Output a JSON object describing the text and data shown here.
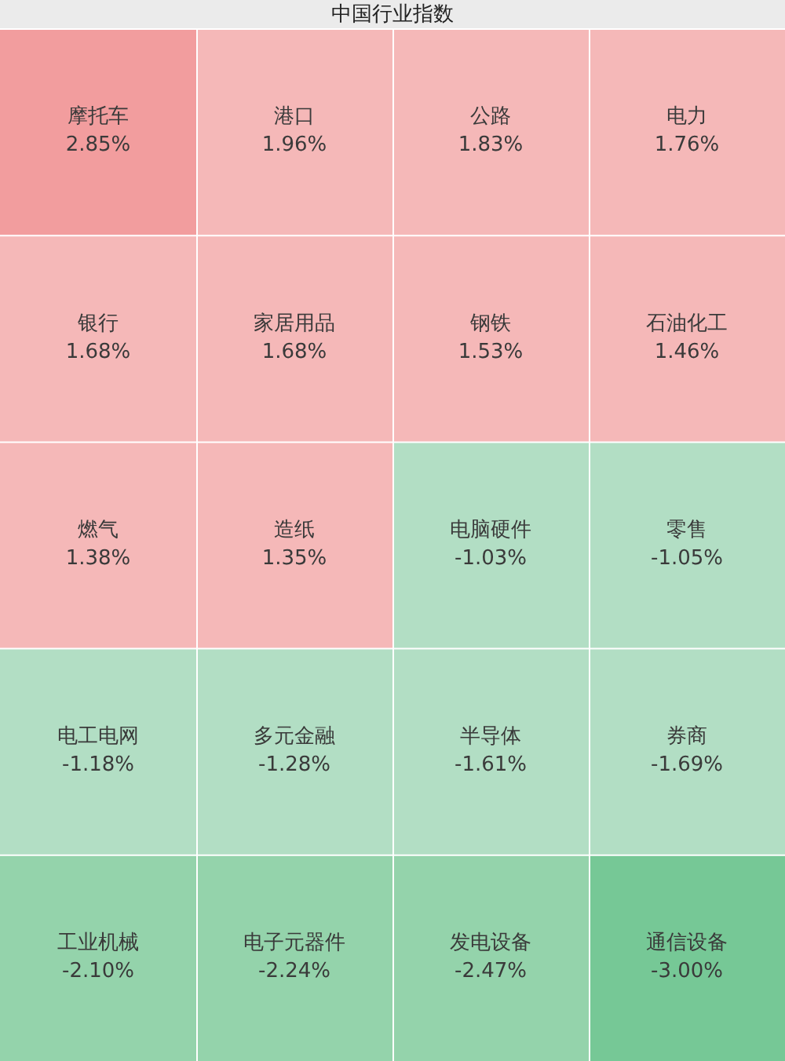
{
  "chart_data": {
    "type": "other",
    "title": "中国行业指数",
    "categories": [
      "摩托车",
      "港口",
      "公路",
      "电力",
      "银行",
      "家居用品",
      "钢铁",
      "石油化工",
      "燃气",
      "造纸",
      "电脑硬件",
      "零售",
      "电工电网",
      "多元金融",
      "半导体",
      "券商",
      "工业机械",
      "电子元器件",
      "发电设备",
      "通信设备"
    ],
    "values": [
      2.85,
      1.96,
      1.83,
      1.76,
      1.68,
      1.68,
      1.53,
      1.46,
      1.38,
      1.35,
      -1.03,
      -1.05,
      -1.18,
      -1.28,
      -1.61,
      -1.69,
      -2.1,
      -2.24,
      -2.47,
      -3.0
    ],
    "value_labels": [
      "2.85%",
      "1.96%",
      "1.83%",
      "1.76%",
      "1.68%",
      "1.68%",
      "1.53%",
      "1.46%",
      "1.38%",
      "1.35%",
      "-1.03%",
      "-1.05%",
      "-1.18%",
      "-1.28%",
      "-1.61%",
      "-1.69%",
      "-2.10%",
      "-2.24%",
      "-2.47%",
      "-3.00%"
    ]
  }
}
